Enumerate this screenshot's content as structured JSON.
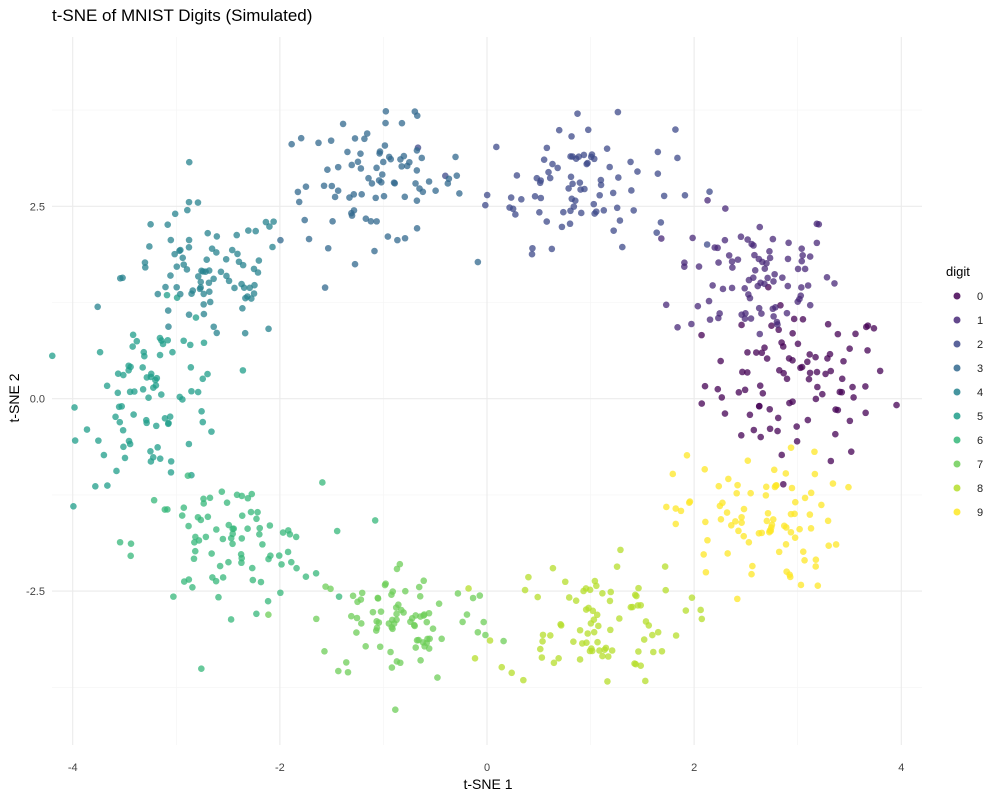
{
  "chart_data": {
    "type": "scatter",
    "title": "t-SNE of MNIST Digits (Simulated)",
    "xlabel": "t-SNE 1",
    "ylabel": "t-SNE 2",
    "xlim": [
      -4.2,
      4.2
    ],
    "ylim": [
      -4.5,
      4.7
    ],
    "x_ticks": [
      -4,
      -2,
      0,
      2,
      4
    ],
    "y_ticks": [
      -2.5,
      0.0,
      2.5
    ],
    "x_tick_labels": [
      "-4",
      "-2",
      "0",
      "2",
      "4"
    ],
    "y_tick_labels": [
      "-2.5",
      "0.0",
      "2.5"
    ],
    "grid": true,
    "legend": {
      "title": "digit",
      "position": "right"
    },
    "series": [
      {
        "name": "0",
        "color": "#440154",
        "center": [
          3.0,
          0.2
        ],
        "spread": [
          0.45,
          0.5
        ],
        "count": 90
      },
      {
        "name": "1",
        "color": "#482878",
        "center": [
          2.6,
          1.6
        ],
        "spread": [
          0.4,
          0.45
        ],
        "count": 85
      },
      {
        "name": "2",
        "color": "#3e4989",
        "center": [
          0.9,
          2.8
        ],
        "spread": [
          0.45,
          0.4
        ],
        "count": 85
      },
      {
        "name": "3",
        "color": "#31688e",
        "center": [
          -1.1,
          2.8
        ],
        "spread": [
          0.45,
          0.4
        ],
        "count": 85
      },
      {
        "name": "4",
        "color": "#26828e",
        "center": [
          -2.7,
          1.6
        ],
        "spread": [
          0.4,
          0.45
        ],
        "count": 85
      },
      {
        "name": "5",
        "color": "#1f9e89",
        "center": [
          -3.2,
          0.0
        ],
        "spread": [
          0.35,
          0.55
        ],
        "count": 85
      },
      {
        "name": "6",
        "color": "#35b779",
        "center": [
          -2.5,
          -1.9
        ],
        "spread": [
          0.45,
          0.4
        ],
        "count": 85
      },
      {
        "name": "7",
        "color": "#6ece58",
        "center": [
          -0.8,
          -2.9
        ],
        "spread": [
          0.45,
          0.4
        ],
        "count": 85
      },
      {
        "name": "8",
        "color": "#b5de2b",
        "center": [
          1.0,
          -2.9
        ],
        "spread": [
          0.45,
          0.4
        ],
        "count": 85
      },
      {
        "name": "9",
        "color": "#fde725",
        "center": [
          2.6,
          -1.6
        ],
        "spread": [
          0.4,
          0.45
        ],
        "count": 85
      }
    ]
  }
}
